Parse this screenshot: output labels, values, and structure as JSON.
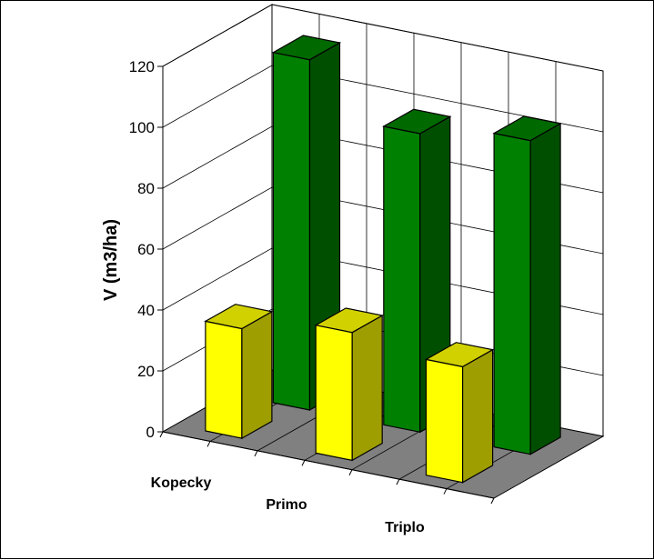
{
  "chart_data": {
    "type": "bar",
    "style": "3d-clustered-column",
    "categories": [
      "Kopecky",
      "Primo",
      "Triplo"
    ],
    "series": [
      {
        "values": [
          36,
          42,
          38
        ],
        "color": "#ffff00"
      },
      {
        "values": [
          115,
          98,
          103
        ],
        "color": "#008000"
      }
    ],
    "ylabel": "V (m3/ha)",
    "ylim": [
      0,
      120
    ],
    "yticks": [
      0,
      20,
      40,
      60,
      80,
      100,
      120
    ],
    "grid": true,
    "legend": "none",
    "floor_color": "#808080",
    "wall_color": "#ffffff"
  }
}
